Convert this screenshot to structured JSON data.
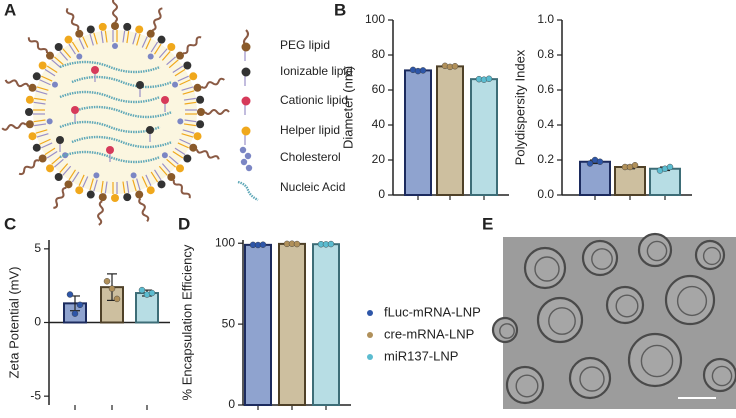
{
  "panel_labels": [
    "A",
    "B",
    "C",
    "D",
    "E"
  ],
  "diagram": {
    "labels": [
      "PEG lipid",
      "Ionizable lipid",
      "Cationic lipid",
      "Helper lipid",
      "Cholesterol",
      "Nucleic Acid"
    ]
  },
  "legend": [
    {
      "name": "fLuc-mRNA-LNP",
      "color": "#8fa3cf",
      "edge_color": "#1c2b5e",
      "point_color": "#2e56a8"
    },
    {
      "name": "cre-mRNA-LNP",
      "color": "#cdbf9f",
      "edge_color": "#4f4128",
      "point_color": "#b0905a"
    },
    {
      "name": "miR137-LNP",
      "color": "#b7dde4",
      "edge_color": "#3d6d77",
      "point_color": "#5bbcd0"
    }
  ],
  "chart_data": [
    {
      "type": "bar",
      "ylabel": "Diameter (nm)",
      "categories": [
        null,
        null,
        null
      ],
      "values": [
        71.2,
        73.5,
        66.2
      ],
      "errors": [
        0.6,
        0.5,
        0.4
      ],
      "points": [
        [
          71.5,
          70.8,
          71.2
        ],
        [
          73.8,
          73.2,
          73.6
        ],
        [
          66.2,
          65.9,
          66.4
        ]
      ],
      "ylim": [
        0,
        100
      ],
      "yticks": [
        0,
        20,
        40,
        60,
        80,
        100
      ]
    },
    {
      "type": "bar",
      "ylabel": "Polydispersity Index",
      "categories": [
        null,
        null,
        null
      ],
      "values": [
        0.19,
        0.16,
        0.15
      ],
      "errors": [
        0.01,
        0.01,
        0.01
      ],
      "points": [
        [
          0.18,
          0.2,
          0.19
        ],
        [
          0.16,
          0.16,
          0.17
        ],
        [
          0.14,
          0.15,
          0.16
        ]
      ],
      "ylim": [
        0,
        1
      ],
      "yticks": [
        {
          "value": 0,
          "label": "0.0"
        },
        0.2,
        0.4,
        0.6,
        0.8,
        {
          "value": 1,
          "label": "1.0"
        }
      ]
    },
    {
      "type": "bar",
      "ylabel": "Zeta Potential (mV)",
      "categories": [
        null,
        null,
        null
      ],
      "values": [
        1.3,
        2.4,
        2.0
      ],
      "errors": [
        0.5,
        0.9,
        0.2
      ],
      "points": [
        [
          1.9,
          0.6,
          1.2
        ],
        [
          2.8,
          2.3,
          1.6
        ],
        [
          2.2,
          1.9,
          2.0
        ]
      ],
      "ylim": [
        -5.6,
        5.6
      ],
      "yticks": [
        -5,
        0,
        5
      ]
    },
    {
      "type": "bar",
      "ylabel": "% Encapsulation Efficiency",
      "categories": [
        null,
        null,
        null
      ],
      "values": [
        99,
        99.6,
        99.4
      ],
      "errors": [
        0.2,
        0.1,
        0.1
      ],
      "points": [
        [
          99,
          98.9,
          99.1
        ],
        [
          99.6,
          99.7,
          99.5
        ],
        [
          99.4,
          99.3,
          99.5
        ]
      ],
      "ylim": [
        0,
        102
      ],
      "yticks": [
        0,
        50,
        100
      ]
    }
  ]
}
